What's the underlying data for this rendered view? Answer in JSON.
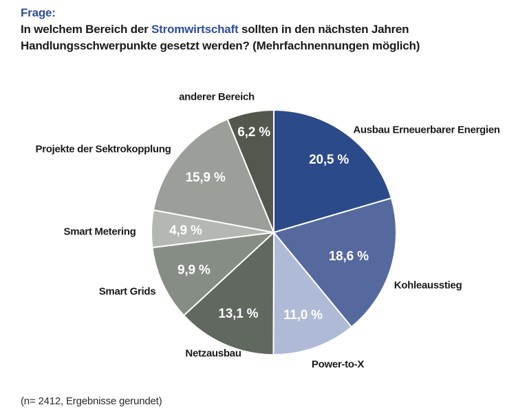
{
  "header": {
    "label": "Frage:",
    "question": {
      "pre": "In welchem Bereich der ",
      "highlight": "Stromwirtschaft",
      "post": " sollten in den nächsten Jahren",
      "line2": "Handlungsschwerpunkte gesetzt werden? (Mehrfachnennungen möglich)"
    }
  },
  "footer": {
    "note": "(n= 2412, Ergebnisse gerundet)"
  },
  "colors": {
    "accent_blue": "#2c4d9b",
    "text_dark": "#1a1a1a",
    "slice_border": "#ffffff"
  },
  "chart_data": {
    "type": "pie",
    "title": "Handlungsschwerpunkte in der Stromwirtschaft",
    "unit": "%",
    "start_angle_deg": 0,
    "direction": "clockwise",
    "legend_position": "around-slices",
    "categories": [
      "Ausbau Erneuerbarer Energien",
      "Kohleausstieg",
      "Power-to-X",
      "Netzausbau",
      "Smart Grids",
      "Smart Metering",
      "Projekte der Sektrokopplung",
      "anderer Bereich"
    ],
    "values": [
      20.5,
      18.6,
      11.0,
      13.1,
      9.9,
      4.9,
      15.9,
      6.2
    ],
    "value_labels": [
      "20,5 %",
      "18,6 %",
      "11,0 %",
      "13,1 %",
      "9,9 %",
      "4,9 %",
      "15,9 %",
      "6,2 %"
    ],
    "colors": [
      "#2b4a89",
      "#56699f",
      "#afbbd6",
      "#616860",
      "#868d84",
      "#b4b8b2",
      "#9b9e99",
      "#53574e"
    ]
  }
}
